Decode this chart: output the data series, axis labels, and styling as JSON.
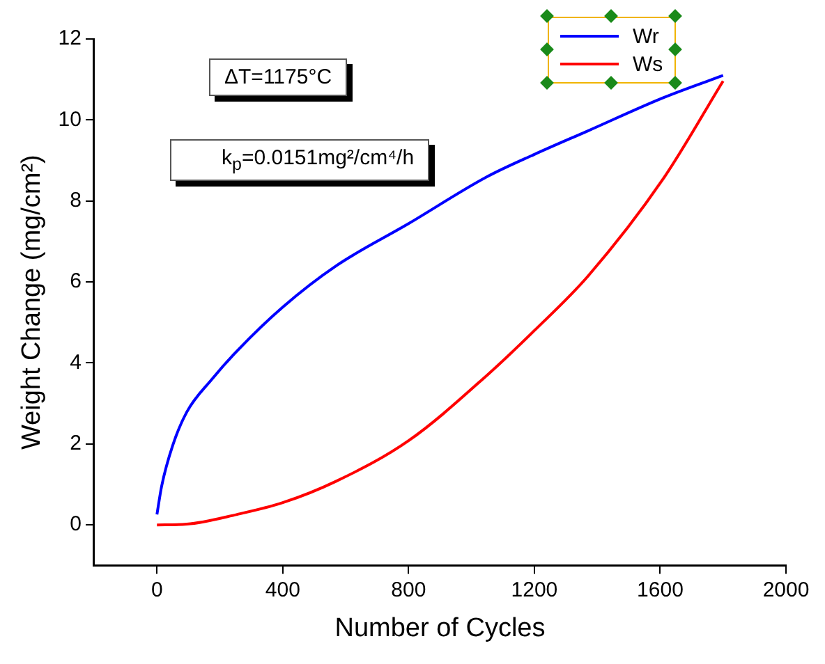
{
  "chart_data": {
    "type": "line",
    "xlabel": "Number of Cycles",
    "ylabel": "Weight Change (mg/cm²)",
    "xlim": [
      -200,
      2000
    ],
    "xticks": [
      0,
      400,
      800,
      1200,
      1600,
      2000
    ],
    "ylim": [
      -1,
      12
    ],
    "yticks": [
      0,
      2,
      4,
      6,
      8,
      10,
      12
    ],
    "grid": false,
    "legend": "top right",
    "marker": "none",
    "line_style": "solid",
    "annotations": [
      "ΔT=1175°C",
      "k$_{p}$=0.0151mg²/cm⁴/h"
    ],
    "series": [
      {
        "name": "Wr",
        "color": "#0000ff",
        "x": [
          0,
          15,
          50,
          95,
          175,
          255,
          400,
          570,
          800,
          1050,
          1200,
          1370,
          1610,
          1800
        ],
        "values": [
          0.26,
          0.96,
          1.96,
          2.79,
          3.6,
          4.3,
          5.38,
          6.4,
          7.44,
          8.6,
          9.15,
          9.73,
          10.55,
          11.1
        ]
      },
      {
        "name": "Ws",
        "color": "#ff0000",
        "x": [
          0,
          95,
          255,
          400,
          570,
          800,
          1050,
          1200,
          1370,
          1610,
          1800
        ],
        "values": [
          0,
          0.02,
          0.26,
          0.55,
          1.08,
          2.08,
          3.7,
          4.8,
          6.14,
          8.55,
          10.96
        ]
      }
    ]
  }
}
